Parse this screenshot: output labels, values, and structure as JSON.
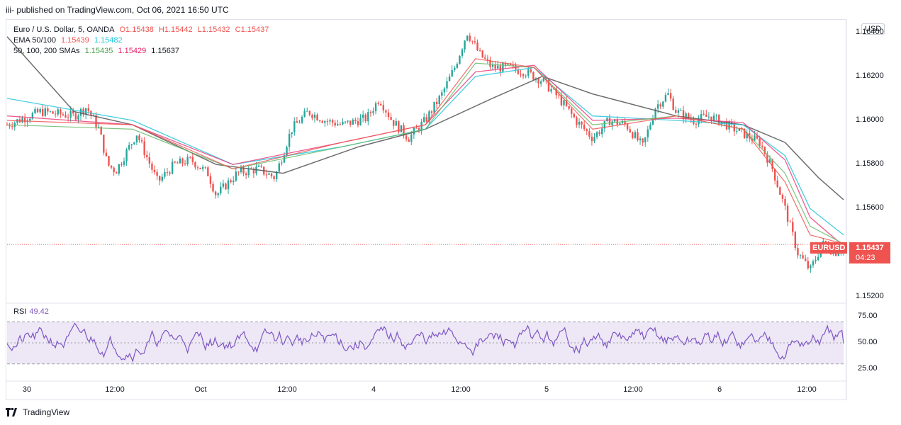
{
  "header": {
    "published": "iii- published on TradingView.com, Oct 06, 2021 16:50 UTC"
  },
  "legend": {
    "symbol": "Euro / U.S. Dollar, 5, OANDA",
    "open": "O1.15438",
    "high": "H1.15442",
    "low": "L1.15432",
    "close": "C1.15437",
    "ema_label": "EMA 50/100",
    "ema50": "1.15439",
    "ema100": "1.15482",
    "sma_label": "50, 100, 200 SMAs",
    "sma50": "1.15435",
    "sma100": "1.15429",
    "sma200": "1.15637"
  },
  "rsi": {
    "label": "RSI",
    "value": "49.42"
  },
  "currency_button": "USD",
  "price_tag": {
    "symbol": "EURUSD",
    "price": "1.15437",
    "countdown": "04:23"
  },
  "footer": {
    "brand": "TradingView"
  },
  "colors": {
    "up": "#26a69a",
    "down": "#ef5350",
    "ema50": "#ef5350",
    "ema100": "#26c6da",
    "sma50": "#66bb6a",
    "sma100": "#ec407a",
    "sma200": "#555555",
    "rsi": "#7e57c2",
    "rsi_band": "#ede7f6"
  },
  "chart_data": [
    {
      "type": "candlestick",
      "title": "Euro / U.S. Dollar, 5, OANDA",
      "ylim": [
        1.1518,
        1.1645
      ],
      "y_ticks": [
        "1.16400",
        "1.16200",
        "1.16000",
        "1.15800",
        "1.15600",
        "1.15200"
      ],
      "x_ticks": [
        "30",
        "12:00",
        "Oct",
        "12:00",
        "4",
        "12:00",
        "5",
        "12:00",
        "6",
        "12:00"
      ],
      "last_price": 1.15437,
      "close_path": [
        [
          0,
          1.1598
        ],
        [
          0.04,
          1.1604
        ],
        [
          0.08,
          1.1602
        ],
        [
          0.095,
          1.1606
        ],
        [
          0.11,
          1.1596
        ],
        [
          0.12,
          1.158
        ],
        [
          0.13,
          1.1577
        ],
        [
          0.155,
          1.1594
        ],
        [
          0.18,
          1.1572
        ],
        [
          0.2,
          1.158
        ],
        [
          0.22,
          1.1582
        ],
        [
          0.24,
          1.1576
        ],
        [
          0.25,
          1.1566
        ],
        [
          0.275,
          1.1576
        ],
        [
          0.3,
          1.1578
        ],
        [
          0.32,
          1.1574
        ],
        [
          0.34,
          1.1596
        ],
        [
          0.36,
          1.1604
        ],
        [
          0.38,
          1.16
        ],
        [
          0.4,
          1.1598
        ],
        [
          0.43,
          1.1601
        ],
        [
          0.445,
          1.161
        ],
        [
          0.46,
          1.16
        ],
        [
          0.48,
          1.1592
        ],
        [
          0.5,
          1.16
        ],
        [
          0.52,
          1.1612
        ],
        [
          0.535,
          1.1624
        ],
        [
          0.55,
          1.164
        ],
        [
          0.565,
          1.163
        ],
        [
          0.58,
          1.1624
        ],
        [
          0.6,
          1.1624
        ],
        [
          0.62,
          1.1622
        ],
        [
          0.64,
          1.1618
        ],
        [
          0.66,
          1.161
        ],
        [
          0.68,
          1.16
        ],
        [
          0.7,
          1.1592
        ],
        [
          0.72,
          1.16
        ],
        [
          0.74,
          1.1598
        ],
        [
          0.76,
          1.1588
        ],
        [
          0.775,
          1.1606
        ],
        [
          0.79,
          1.1612
        ],
        [
          0.8,
          1.1604
        ],
        [
          0.82,
          1.16
        ],
        [
          0.84,
          1.1602
        ],
        [
          0.86,
          1.1598
        ],
        [
          0.88,
          1.1594
        ],
        [
          0.9,
          1.159
        ],
        [
          0.915,
          1.1578
        ],
        [
          0.93,
          1.156
        ],
        [
          0.945,
          1.154
        ],
        [
          0.96,
          1.1532
        ],
        [
          0.975,
          1.1544
        ],
        [
          0.99,
          1.154
        ],
        [
          1.0,
          1.1543
        ]
      ],
      "ema50_path": [
        [
          0,
          1.16
        ],
        [
          0.15,
          1.1598
        ],
        [
          0.27,
          1.1578
        ],
        [
          0.4,
          1.159
        ],
        [
          0.5,
          1.1598
        ],
        [
          0.56,
          1.1628
        ],
        [
          0.63,
          1.1624
        ],
        [
          0.7,
          1.1596
        ],
        [
          0.8,
          1.1602
        ],
        [
          0.88,
          1.1596
        ],
        [
          0.93,
          1.1572
        ],
        [
          0.96,
          1.1548
        ],
        [
          1.0,
          1.1544
        ]
      ],
      "ema100_path": [
        [
          0,
          1.161
        ],
        [
          0.15,
          1.16
        ],
        [
          0.27,
          1.158
        ],
        [
          0.4,
          1.1588
        ],
        [
          0.5,
          1.1596
        ],
        [
          0.56,
          1.162
        ],
        [
          0.63,
          1.1624
        ],
        [
          0.7,
          1.1602
        ],
        [
          0.8,
          1.16
        ],
        [
          0.88,
          1.1598
        ],
        [
          0.93,
          1.1584
        ],
        [
          0.96,
          1.156
        ],
        [
          1.0,
          1.1548
        ]
      ],
      "sma50_path": [
        [
          0,
          1.1598
        ],
        [
          0.15,
          1.1596
        ],
        [
          0.27,
          1.1578
        ],
        [
          0.4,
          1.1588
        ],
        [
          0.5,
          1.1596
        ],
        [
          0.56,
          1.1626
        ],
        [
          0.63,
          1.1624
        ],
        [
          0.7,
          1.1598
        ],
        [
          0.8,
          1.1602
        ],
        [
          0.88,
          1.1596
        ],
        [
          0.93,
          1.1576
        ],
        [
          0.96,
          1.1552
        ],
        [
          1.0,
          1.1544
        ]
      ],
      "sma100_path": [
        [
          0,
          1.1602
        ],
        [
          0.15,
          1.1598
        ],
        [
          0.27,
          1.158
        ],
        [
          0.4,
          1.159
        ],
        [
          0.5,
          1.1598
        ],
        [
          0.56,
          1.1622
        ],
        [
          0.63,
          1.1625
        ],
        [
          0.7,
          1.16
        ],
        [
          0.8,
          1.1601
        ],
        [
          0.88,
          1.1599
        ],
        [
          0.93,
          1.1582
        ],
        [
          0.96,
          1.1556
        ],
        [
          1.0,
          1.1543
        ]
      ],
      "sma200_path": [
        [
          0,
          1.1638
        ],
        [
          0.08,
          1.1604
        ],
        [
          0.15,
          1.1598
        ],
        [
          0.25,
          1.158
        ],
        [
          0.33,
          1.1576
        ],
        [
          0.42,
          1.1588
        ],
        [
          0.5,
          1.1596
        ],
        [
          0.58,
          1.161
        ],
        [
          0.64,
          1.162
        ],
        [
          0.7,
          1.1612
        ],
        [
          0.8,
          1.1602
        ],
        [
          0.88,
          1.1598
        ],
        [
          0.93,
          1.159
        ],
        [
          0.97,
          1.1574
        ],
        [
          1.0,
          1.1564
        ]
      ]
    },
    {
      "type": "line",
      "title": "RSI",
      "ylim": [
        15,
        85
      ],
      "y_ticks": [
        "75.00",
        "50.00",
        "25.00"
      ],
      "levels": [
        70,
        50,
        30
      ],
      "last_value": 49.42
    }
  ]
}
